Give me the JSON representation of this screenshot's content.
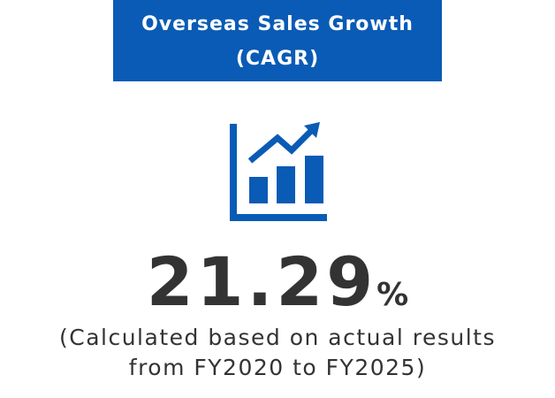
{
  "header": {
    "title_lines": [
      "Overseas Sales Growth",
      "(CAGR)"
    ]
  },
  "metric": {
    "value": 21.29,
    "unit": "%"
  },
  "note_lines": [
    "(Calculated based on actual results",
    "from FY2020 to FY2025)"
  ]
}
